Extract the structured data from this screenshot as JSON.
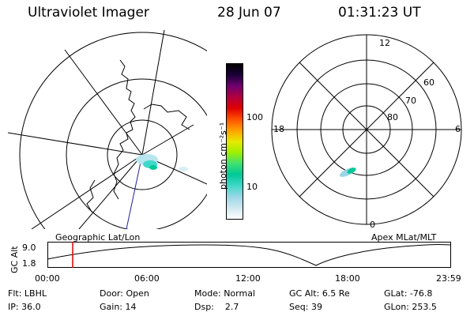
{
  "header": {
    "title": "Ultraviolet Imager",
    "date": "28 Jun 07",
    "time": "01:31:23 UT"
  },
  "colorbar": {
    "unit_label": "photon cm⁻²s⁻¹",
    "ticks": [
      "100",
      "10"
    ],
    "colors": [
      "#ffffff",
      "#d0e8f0",
      "#9ad6e6",
      "#40d8c8",
      "#00c898",
      "#40e070",
      "#a0f000",
      "#e8e800",
      "#ffa000",
      "#ff5000",
      "#e00000",
      "#b00040",
      "#700070",
      "#1a0038",
      "#000000"
    ]
  },
  "left_map": {
    "caption": "Geographic Lat/Lon"
  },
  "right_map": {
    "caption": "Apex MLat/MLT",
    "mlt_labels": {
      "top": "12",
      "left": "18",
      "right": "6",
      "bottom": "0"
    },
    "lat_labels": [
      "60",
      "70",
      "80"
    ]
  },
  "altitude_plot": {
    "ylabel": "GC Alt",
    "yticks": [
      "9.0",
      "1.8"
    ],
    "xticks": [
      "00:00",
      "06:00",
      "12:00",
      "18:00",
      "23:59"
    ],
    "marker_time": "01:31:23",
    "marker_color": "#e00000"
  },
  "footer": {
    "row1": [
      {
        "key": "Flt:",
        "val": "LBHL"
      },
      {
        "key": "Door:",
        "val": "Open"
      },
      {
        "key": "Mode:",
        "val": "Normal"
      },
      {
        "key": "GC Alt:",
        "val": "6.5 Re"
      },
      {
        "key": "GLat:",
        "val": "-76.8"
      }
    ],
    "row2": [
      {
        "key": "IP:",
        "val": "36.0"
      },
      {
        "key": "Gain:",
        "val": "14"
      },
      {
        "key": "Dsp:",
        "val": "2.7"
      },
      {
        "key": "Seq:",
        "val": "39"
      },
      {
        "key": "GLon:",
        "val": "253.5"
      }
    ]
  }
}
